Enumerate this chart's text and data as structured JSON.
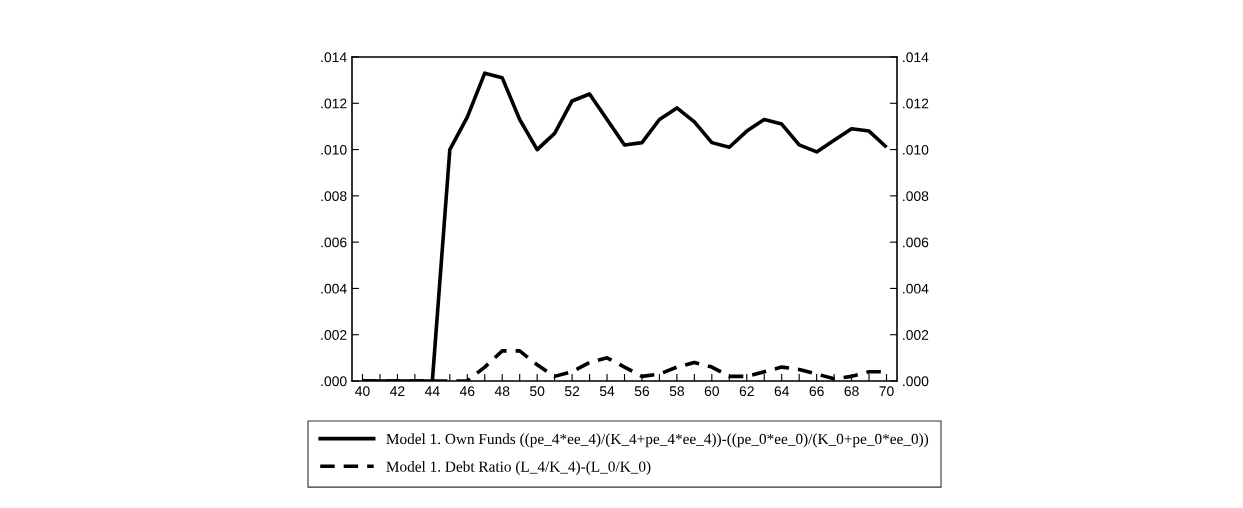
{
  "chart_data": {
    "type": "line",
    "x": [
      40,
      41,
      42,
      43,
      44,
      45,
      46,
      47,
      48,
      49,
      50,
      51,
      52,
      53,
      54,
      55,
      56,
      57,
      58,
      59,
      60,
      61,
      62,
      63,
      64,
      65,
      66,
      67,
      68,
      69,
      70
    ],
    "series": [
      {
        "name": "Model 1. Own Funds ((pe_4*ee_4)/(K_4+pe_4*ee_4))-((pe_0*ee_0)/(K_0+pe_0*ee_0))",
        "color": "#000000",
        "line_style": "solid",
        "values": [
          0,
          0,
          0,
          0,
          0,
          0.01,
          0.0114,
          0.0133,
          0.0131,
          0.0113,
          0.01,
          0.0107,
          0.0121,
          0.0124,
          0.0113,
          0.0102,
          0.0103,
          0.0113,
          0.0118,
          0.0112,
          0.0103,
          0.0101,
          0.0108,
          0.0113,
          0.0111,
          0.0102,
          0.0099,
          0.0104,
          0.0109,
          0.0108,
          0.0101
        ]
      },
      {
        "name": "Model 1. Debt Ratio (L_4/K_4)-(L_0/K_0)",
        "color": "#000000",
        "line_style": "dashed",
        "values": [
          0,
          0,
          0,
          0,
          0,
          0,
          0,
          0.0006,
          0.0013,
          0.0013,
          0.0007,
          0.0002,
          0.0004,
          0.0008,
          0.001,
          0.0006,
          0.0002,
          0.0003,
          0.0006,
          0.0008,
          0.0006,
          0.0002,
          0.0002,
          0.0004,
          0.0006,
          0.0005,
          0.0003,
          0.0001,
          0.0002,
          0.0004,
          0.0004
        ]
      }
    ],
    "xlim": [
      39.4,
      70.6
    ],
    "xticks": [
      40,
      {
        "value": 41,
        "label": null
      },
      42,
      {
        "value": 43,
        "label": null
      },
      44,
      {
        "value": 45,
        "label": null
      },
      46,
      {
        "value": 47,
        "label": null
      },
      48,
      {
        "value": 49,
        "label": null
      },
      50,
      {
        "value": 51,
        "label": null
      },
      52,
      {
        "value": 53,
        "label": null
      },
      54,
      {
        "value": 55,
        "label": null
      },
      56,
      {
        "value": 57,
        "label": null
      },
      58,
      {
        "value": 59,
        "label": null
      },
      60,
      {
        "value": 61,
        "label": null
      },
      62,
      {
        "value": 63,
        "label": null
      },
      64,
      {
        "value": 65,
        "label": null
      },
      66,
      {
        "value": 67,
        "label": null
      },
      68,
      {
        "value": 69,
        "label": null
      },
      70
    ],
    "ylim": [
      0,
      0.014
    ],
    "yticks": [
      {
        "value": 0,
        "label": ".000"
      },
      {
        "value": 0.002,
        "label": ".002"
      },
      {
        "value": 0.004,
        "label": ".004"
      },
      {
        "value": 0.006,
        "label": ".006"
      },
      {
        "value": 0.008,
        "label": ".008"
      },
      {
        "value": 0.01,
        "label": ".010"
      },
      {
        "value": 0.012,
        "label": ".012"
      },
      {
        "value": 0.014,
        "label": ".014"
      }
    ],
    "y2lim": [
      0,
      0.014
    ],
    "y2ticks": [
      {
        "value": 0,
        "label": ".000"
      },
      {
        "value": 0.002,
        "label": ".002"
      },
      {
        "value": 0.004,
        "label": ".004"
      },
      {
        "value": 0.006,
        "label": ".006"
      },
      {
        "value": 0.008,
        "label": ".008"
      },
      {
        "value": 0.01,
        "label": ".010"
      },
      {
        "value": 0.012,
        "label": ".012"
      },
      {
        "value": 0.014,
        "label": ".014"
      }
    ],
    "grid": false,
    "legend": "bottom",
    "marker": "none"
  }
}
